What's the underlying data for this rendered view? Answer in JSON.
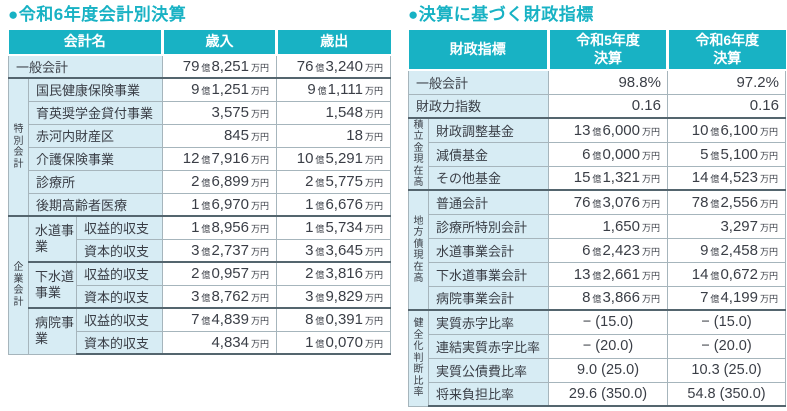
{
  "colors": {
    "accent_teal": "#18b2c4",
    "label_cell_blue": "#d7ecf4",
    "grid_line": "#a6b5bc",
    "group_line": "#54656e",
    "text": "#3a3e46"
  },
  "left": {
    "title": "●令和6年度会計別決算",
    "header": {
      "name": "会計名",
      "revenue": "歳入",
      "expenditure": "歳出"
    },
    "general": {
      "name": "一般会計",
      "rev": "79億8,251万円",
      "exp": "76億3,240万円"
    },
    "special": {
      "group": "特別会計",
      "rows": [
        {
          "name": "国民健康保険事業",
          "rev": "9億1,251万円",
          "exp": "9億1,111万円"
        },
        {
          "name": "育英奨学金貸付事業",
          "rev": "3,575万円",
          "exp": "1,548万円"
        },
        {
          "name": "赤河内財産区",
          "rev": "845万円",
          "exp": "18万円"
        },
        {
          "name": "介護保険事業",
          "rev": "12億7,916万円",
          "exp": "10億5,291万円"
        },
        {
          "name": "診療所",
          "rev": "2億6,899万円",
          "exp": "2億5,775万円"
        },
        {
          "name": "後期高齢者医療",
          "rev": "1億6,970万円",
          "exp": "1億6,676万円"
        }
      ]
    },
    "enterprise": {
      "group": "企業会計",
      "businesses": [
        {
          "name": "水道事業",
          "rows": [
            {
              "type": "収益的収支",
              "rev": "1億8,956万円",
              "exp": "1億5,734万円"
            },
            {
              "type": "資本的収支",
              "rev": "3億2,737万円",
              "exp": "3億3,645万円"
            }
          ]
        },
        {
          "name": "下水道事業",
          "rows": [
            {
              "type": "収益的収支",
              "rev": "2億0,957万円",
              "exp": "2億3,816万円"
            },
            {
              "type": "資本的収支",
              "rev": "3億8,762万円",
              "exp": "3億9,829万円"
            }
          ]
        },
        {
          "name": "病院事業",
          "rows": [
            {
              "type": "収益的収支",
              "rev": "7億4,839万円",
              "exp": "8億0,391万円"
            },
            {
              "type": "資本的収支",
              "rev": "4,834万円",
              "exp": "1億0,070万円"
            }
          ]
        }
      ]
    }
  },
  "right": {
    "title": "●決算に基づく財政指標",
    "header": {
      "name": "財政指標",
      "y5": "令和5年度\n決算",
      "y6": "令和6年度\n決算"
    },
    "simple": [
      {
        "name": "一般会計",
        "v5": "98.8%",
        "v6": "97.2%"
      },
      {
        "name": "財政力指数",
        "v5": "0.16",
        "v6": "0.16"
      }
    ],
    "funds": {
      "group": "積立金現在高",
      "rows": [
        {
          "name": "財政調整基金",
          "v5": "13億6,000万円",
          "v6": "10億6,100万円"
        },
        {
          "name": "減債基金",
          "v5": "6億0,000万円",
          "v6": "5億5,100万円"
        },
        {
          "name": "その他基金",
          "v5": "15億1,321万円",
          "v6": "14億4,523万円"
        }
      ]
    },
    "debt": {
      "group": "地方債現在高",
      "rows": [
        {
          "name": "普通会計",
          "v5": "76億3,076万円",
          "v6": "78億2,556万円"
        },
        {
          "name": "診療所特別会計",
          "v5": "1,650万円",
          "v6": "3,297万円"
        },
        {
          "name": "水道事業会計",
          "v5": "6億2,423万円",
          "v6": "9億2,458万円"
        },
        {
          "name": "下水道事業会計",
          "v5": "13億2,661万円",
          "v6": "14億0,672万円"
        },
        {
          "name": "病院事業会計",
          "v5": "8億3,866万円",
          "v6": "7億4,199万円"
        }
      ]
    },
    "health": {
      "group": "健全化判断比率",
      "rows": [
        {
          "name": "実質赤字比率",
          "v5": "− (15.0)",
          "v6": "− (15.0)"
        },
        {
          "name": "連結実質赤字比率",
          "v5": "− (20.0)",
          "v6": "− (20.0)"
        },
        {
          "name": "実質公債費比率",
          "v5": "9.0 (25.0)",
          "v6": "10.3 (25.0)"
        },
        {
          "name": "将来負担比率",
          "v5": "29.6 (350.0)",
          "v6": "54.8 (350.0)"
        }
      ]
    }
  }
}
